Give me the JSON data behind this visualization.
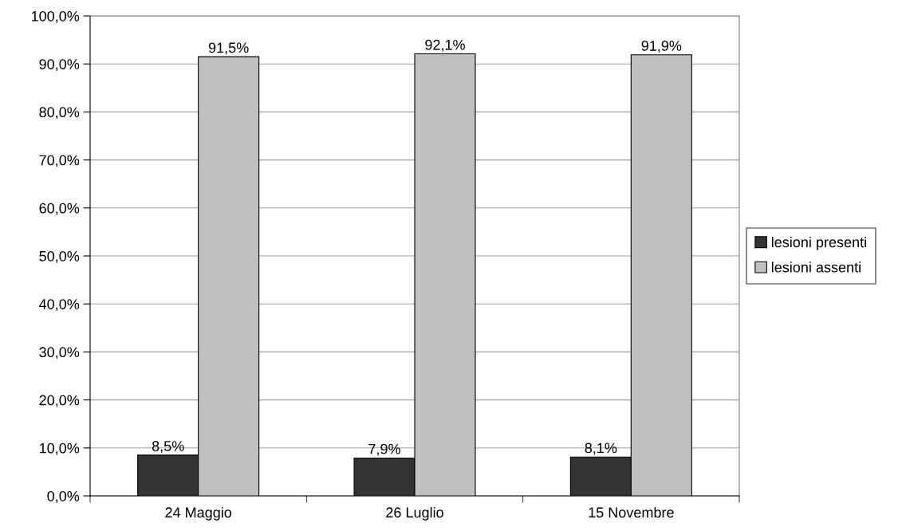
{
  "chart_data": {
    "type": "bar",
    "categories": [
      "24 Maggio",
      "26 Luglio",
      "15 Novembre"
    ],
    "series": [
      {
        "name": "lesioni presenti",
        "color": "#333333",
        "values": [
          8.5,
          7.9,
          8.1
        ],
        "value_labels": [
          "8,5%",
          "7,9%",
          "8,1%"
        ]
      },
      {
        "name": "lesioni assenti",
        "color": "#c0c0c0",
        "values": [
          91.5,
          92.1,
          91.9
        ],
        "value_labels": [
          "91,5%",
          "92,1%",
          "91,9%"
        ]
      }
    ],
    "ylim": [
      0,
      100
    ],
    "yticks": [
      {
        "value": 0,
        "label": "0,0%"
      },
      {
        "value": 10,
        "label": "10,0%"
      },
      {
        "value": 20,
        "label": "20,0%"
      },
      {
        "value": 30,
        "label": "30,0%"
      },
      {
        "value": 40,
        "label": "40,0%"
      },
      {
        "value": 50,
        "label": "50,0%"
      },
      {
        "value": 60,
        "label": "60,0%"
      },
      {
        "value": 70,
        "label": "70,0%"
      },
      {
        "value": 80,
        "label": "80,0%"
      },
      {
        "value": 90,
        "label": "90,0%"
      },
      {
        "value": 100,
        "label": "100,0%"
      }
    ],
    "grid": "y",
    "legend": "right"
  }
}
